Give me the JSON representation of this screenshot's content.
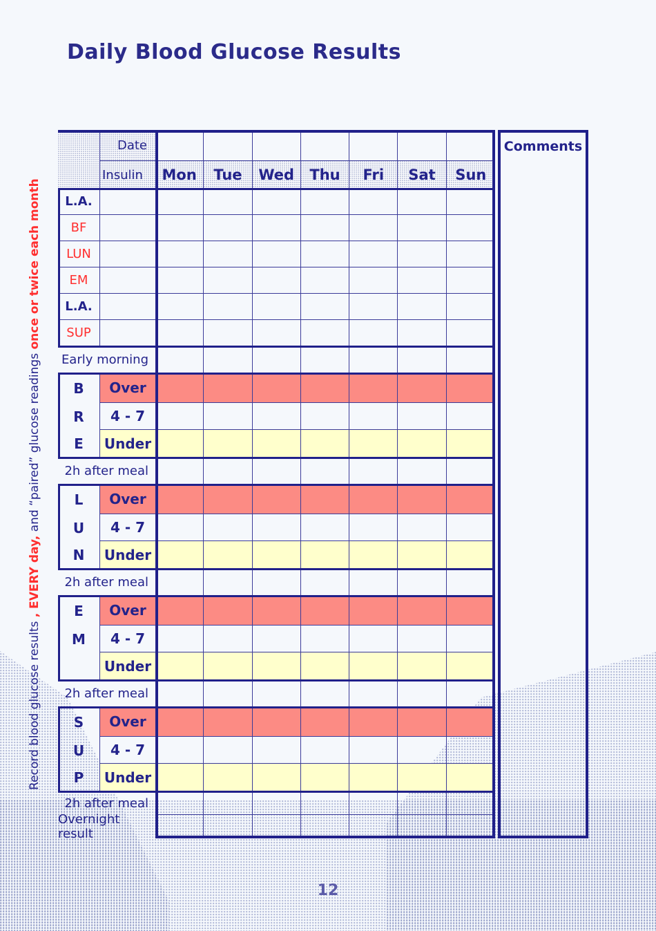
{
  "page": {
    "title": "Daily Blood Glucose Results",
    "page_number": "12"
  },
  "side_note": {
    "segments": [
      {
        "text": "Record blood glucose results ",
        "style": "navy"
      },
      {
        "text": ", EVERY day,",
        "style": "red-bold"
      },
      {
        "text": " and “paired” glucose readings ",
        "style": "navy"
      },
      {
        "text": "once or twice each month",
        "style": "red-bold"
      }
    ]
  },
  "table": {
    "header": {
      "date_label": "Date",
      "insulin_label": "Insulin",
      "days": [
        "Mon",
        "Tue",
        "Wed",
        "Thu",
        "Fri",
        "Sat",
        "Sun"
      ],
      "comments_label": "Comments"
    },
    "insulin_rows": [
      {
        "label": "L.A.",
        "style": "navy-bold"
      },
      {
        "label": "BF",
        "style": "red"
      },
      {
        "label": "LUN",
        "style": "red"
      },
      {
        "label": "EM",
        "style": "red"
      },
      {
        "label": "L.A.",
        "style": "navy-bold"
      },
      {
        "label": "SUP",
        "style": "red"
      }
    ],
    "sections": [
      {
        "type": "band",
        "label": "Early morning"
      },
      {
        "type": "group",
        "letters": [
          "B",
          "R",
          "E"
        ],
        "range_rows": [
          {
            "label": "Over",
            "tone": "salmon"
          },
          {
            "label": "4 - 7",
            "tone": "plain"
          },
          {
            "label": "Under",
            "tone": "yellow"
          }
        ]
      },
      {
        "type": "band",
        "label": "2h after meal"
      },
      {
        "type": "group",
        "letters": [
          "L",
          "U",
          "N"
        ],
        "range_rows": [
          {
            "label": "Over",
            "tone": "salmon"
          },
          {
            "label": "4 - 7",
            "tone": "plain"
          },
          {
            "label": "Under",
            "tone": "yellow"
          }
        ]
      },
      {
        "type": "band",
        "label": "2h after meal"
      },
      {
        "type": "group",
        "letters": [
          "E",
          "M"
        ],
        "range_rows": [
          {
            "label": "Over",
            "tone": "salmon"
          },
          {
            "label": "4 - 7",
            "tone": "plain"
          },
          {
            "label": "Under",
            "tone": "yellow"
          }
        ]
      },
      {
        "type": "band",
        "label": "2h after meal"
      },
      {
        "type": "group",
        "letters": [
          "S",
          "U",
          "P"
        ],
        "range_rows": [
          {
            "label": "Over",
            "tone": "salmon"
          },
          {
            "label": "4 - 7",
            "tone": "plain"
          },
          {
            "label": "Under",
            "tone": "yellow"
          }
        ]
      },
      {
        "type": "band",
        "label": "2h after meal",
        "small": true
      },
      {
        "type": "band",
        "label": "Overnight result",
        "small": true
      }
    ]
  },
  "colors": {
    "navy": "#23238B",
    "grid_line": "#3A3A99",
    "red": "#FF2F2F",
    "salmon": "#FC8B84",
    "yellow": "#FFFFCC",
    "page_bg": "#F5F8FC",
    "page_number": "#5B5BA8"
  }
}
